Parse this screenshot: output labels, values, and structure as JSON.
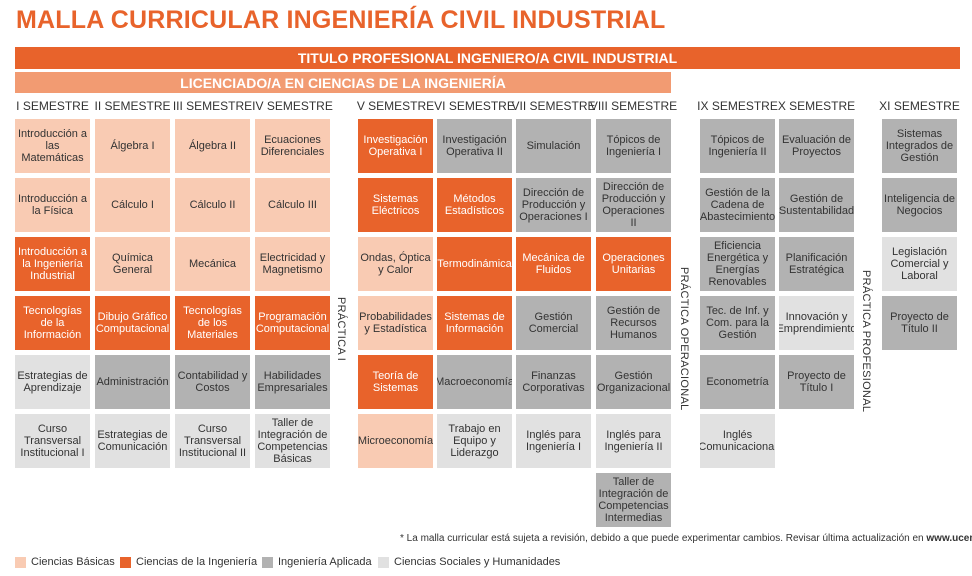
{
  "title": "MALLA CURRICULAR INGENIERÍA CIVIL INDUSTRIAL",
  "banner_professional": "TITULO PROFESIONAL INGENIERO/A CIVIL INDUSTRIAL",
  "banner_licenciado": "LICENCIADO/A EN CIENCIAS DE LA INGENIERÍA",
  "semesters": [
    "I SEMESTRE",
    "II SEMESTRE",
    "III SEMESTRE",
    "IV SEMESTRE",
    "V SEMESTRE",
    "VI SEMESTRE",
    "VII SEMESTRE",
    "VIII SEMESTRE",
    "IX SEMESTRE",
    "X SEMESTRE",
    "XI SEMESTRE"
  ],
  "practicas": {
    "p1": "PRÁCTICA I",
    "operacional": "PRÁCTICA OPERACIONAL",
    "profesional": "PRÁCTICA PROFESIONAL"
  },
  "courses": {
    "s1": [
      "Introducción a las Matemáticas",
      "Introducción a la Física",
      "Introducción a la Ingeniería Industrial",
      "Tecnologías de la Información",
      "Estrategias de Aprendizaje",
      "Curso Transversal Institucional I"
    ],
    "s2": [
      "Álgebra I",
      "Cálculo I",
      "Química General",
      "Dibujo Gráfico Computacional",
      "Administración",
      "Estrategias de Comunicación"
    ],
    "s3": [
      "Álgebra II",
      "Cálculo II",
      "Mecánica",
      "Tecnologías de los Materiales",
      "Contabilidad y Costos",
      "Curso Transversal Institucional II"
    ],
    "s4": [
      "Ecuaciones Diferenciales",
      "Cálculo III",
      "Electricidad y Magnetismo",
      "Programación Computacional",
      "Habilidades Empresariales",
      "Taller de Integración de Competencias Básicas"
    ],
    "s5": [
      "Investigación Operativa I",
      "Sistemas Eléctricos",
      "Ondas, Óptica y Calor",
      "Probabilidades y Estadística",
      "Teoría de Sistemas",
      "Microeconomía"
    ],
    "s6": [
      "Investigación Operativa II",
      "Métodos Estadísticos",
      "Termodinámica",
      "Sistemas de Información",
      "Macroeconomía",
      "Trabajo en Equipo y Liderazgo"
    ],
    "s7": [
      "Simulación",
      "Dirección de Producción y Operaciones I",
      "Mecánica de Fluidos",
      "Gestión Comercial",
      "Finanzas Corporativas",
      "Inglés para Ingeniería I"
    ],
    "s8": [
      "Tópicos de Ingeniería I",
      "Dirección de Producción y Operaciones II",
      "Operaciones Unitarias",
      "Gestión de Recursos Humanos",
      "Gestión Organizacional",
      "Inglés para Ingeniería II",
      "Taller de Integración de Competencias Intermedias"
    ],
    "s9": [
      "Tópicos de Ingeniería II",
      "Gestión de la Cadena de Abastecimiento",
      "Eficiencia Energética y Energías Renovables",
      "Tec. de Inf. y Com. para la Gestión",
      "Econometría",
      "Inglés Comunicacional"
    ],
    "s10": [
      "Evaluación de Proyectos",
      "Gestión de Sustentabilidad",
      "Planificación Estratégica",
      "Innovación y Emprendimiento",
      "Proyecto de Título I"
    ],
    "s11": [
      "Sistemas Integrados de Gestión",
      "Inteligencia de Negocios",
      "Legislación Comercial y Laboral",
      "Proyecto de Título II"
    ]
  },
  "categories": {
    "s1": [
      "basic",
      "basic",
      "ing",
      "ing",
      "soc",
      "soc"
    ],
    "s2": [
      "basic",
      "basic",
      "basic",
      "ing",
      "apl",
      "soc"
    ],
    "s3": [
      "basic",
      "basic",
      "basic",
      "ing",
      "apl",
      "soc"
    ],
    "s4": [
      "basic",
      "basic",
      "basic",
      "ing",
      "apl",
      "soc"
    ],
    "s5": [
      "ing",
      "ing",
      "basic",
      "basic",
      "ing",
      "basic"
    ],
    "s6": [
      "apl",
      "ing",
      "ing",
      "ing",
      "apl",
      "soc"
    ],
    "s7": [
      "apl",
      "apl",
      "ing",
      "apl",
      "apl",
      "soc"
    ],
    "s8": [
      "apl",
      "apl",
      "ing",
      "apl",
      "apl",
      "soc",
      "apl"
    ],
    "s9": [
      "apl",
      "apl",
      "apl",
      "apl",
      "apl",
      "soc"
    ],
    "s10": [
      "apl",
      "apl",
      "apl",
      "soc",
      "apl"
    ],
    "s11": [
      "apl",
      "apl",
      "soc",
      "apl"
    ]
  },
  "footnote": {
    "text": "* La malla curricular está sujeta a revisión, debido a que puede experimentar cambios. Revisar última actualización en ",
    "link": "www.ucentral.cl"
  },
  "legend": [
    {
      "label": "Ciencias Básicas",
      "color": "#f9cbb3"
    },
    {
      "label": "Ciencias de la Ingeniería",
      "color": "#e8632b"
    },
    {
      "label": "Ingeniería Aplicada",
      "color": "#b2b2b2"
    },
    {
      "label": "Ciencias Sociales y Humanidades",
      "color": "#e1e1e1"
    }
  ]
}
